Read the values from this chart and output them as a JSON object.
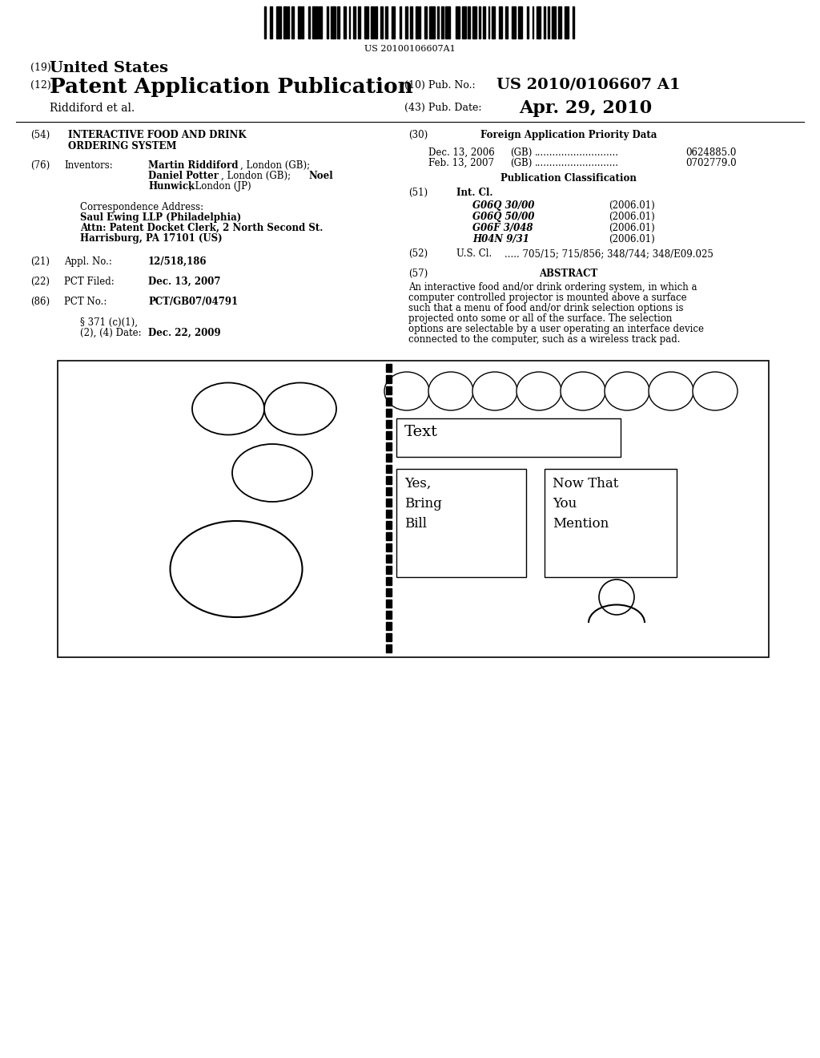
{
  "bg_color": "#ffffff",
  "barcode_text": "US 20100106607A1",
  "title_19": "(19)",
  "title_19_bold": "United States",
  "title_12": "(12)",
  "title_12_bold": "Patent Application Publication",
  "pub_no_label": "(10) Pub. No.:",
  "pub_no": "US 2010/0106607 A1",
  "authors": "Riddiford et al.",
  "pub_date_label": "(43) Pub. Date:",
  "pub_date": "Apr. 29, 2010",
  "section54_label": "(54)",
  "section54_line1": "INTERACTIVE FOOD AND DRINK",
  "section54_line2": "ORDERING SYSTEM",
  "section30_label": "(30)",
  "section30_title": "Foreign Application Priority Data",
  "priority1_date": "Dec. 13, 2006",
  "priority1_country": "(GB)",
  "priority1_dots": "...................................",
  "priority1_num": "0624885.0",
  "priority2_date": "Feb. 13, 2007",
  "priority2_country": "(GB)",
  "priority2_dots": "...................................",
  "priority2_num": "0702779.0",
  "section76_label": "(76)",
  "section76_key": "Inventors:",
  "inv_line1_normal": ", London (GB);",
  "inv_line1_bold": "Martin Riddiford",
  "inv_line2_bold1": "Daniel Potter",
  "inv_line2_normal1": ", London (GB); ",
  "inv_line2_bold2": "Noel",
  "inv_line3_bold": "Hunwick",
  "inv_line3_normal": ", London (JP)",
  "corr_label": "Correspondence Address:",
  "corr_line1": "Saul Ewing LLP (Philadelphia)",
  "corr_line2": "Attn: Patent Docket Clerk, 2 North Second St.",
  "corr_line3": "Harrisburg, PA 17101 (US)",
  "section21_label": "(21)",
  "section21_key": "Appl. No.:",
  "section21_val": "12/518,186",
  "section22_label": "(22)",
  "section22_key": "PCT Filed:",
  "section22_val": "Dec. 13, 2007",
  "section86_label": "(86)",
  "section86_key": "PCT No.:",
  "section86_val": "PCT/GB07/04791",
  "section371_line1": "§ 371 (c)(1),",
  "section371_line2": "(2), (4) Date:",
  "section371_val": "Dec. 22, 2009",
  "pub_class_title": "Publication Classification",
  "section51_label": "(51)",
  "section51_key": "Int. Cl.",
  "class1_code": "G06Q 30/00",
  "class1_year": "(2006.01)",
  "class2_code": "G06Q 50/00",
  "class2_year": "(2006.01)",
  "class3_code": "G06F 3/048",
  "class3_year": "(2006.01)",
  "class4_code": "H04N 9/31",
  "class4_year": "(2006.01)",
  "section52_label": "(52)",
  "section52_key": "U.S. Cl.",
  "section52_val": "..... 705/15; 715/856; 348/744; 348/E09.025",
  "section57_label": "(57)",
  "section57_key": "ABSTRACT",
  "abstract_text": "An interactive food and/or drink ordering system, in which a computer controlled projector is mounted above a surface such that a menu of food and/or drink selection options is projected onto some or all of the surface. The selection options are selectable by a user operating an interface device connected to the computer, such as a wireless track pad."
}
